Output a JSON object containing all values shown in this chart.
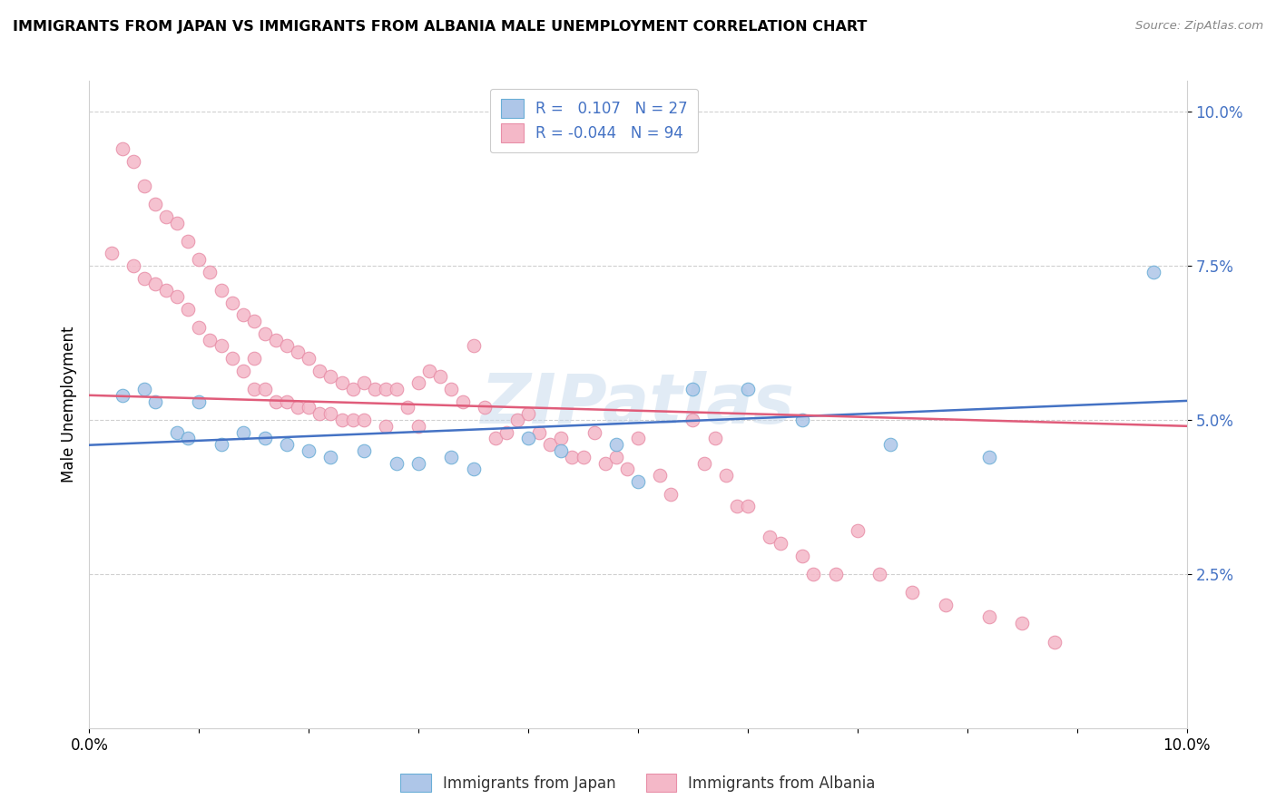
{
  "title": "IMMIGRANTS FROM JAPAN VS IMMIGRANTS FROM ALBANIA MALE UNEMPLOYMENT CORRELATION CHART",
  "source": "Source: ZipAtlas.com",
  "ylabel": "Male Unemployment",
  "watermark": "ZIPatlas",
  "legend_japan_R": "0.107",
  "legend_japan_N": "27",
  "legend_albania_R": "-0.044",
  "legend_albania_N": "94",
  "japan_color": "#aec6e8",
  "albania_color": "#f4b8c8",
  "japan_edge": "#6aaed6",
  "albania_edge": "#e88fa8",
  "japan_line_color": "#4472c4",
  "albania_line_color": "#e05c7a",
  "xlim": [
    0.0,
    0.1
  ],
  "ylim": [
    0.0,
    0.105
  ],
  "yticks": [
    0.025,
    0.05,
    0.075,
    0.1
  ],
  "ytick_labels": [
    "2.5%",
    "5.0%",
    "7.5%",
    "10.0%"
  ],
  "xticks": [
    0.0,
    0.01,
    0.02,
    0.03,
    0.04,
    0.05,
    0.06,
    0.07,
    0.08,
    0.09,
    0.1
  ],
  "xtick_labels": [
    "0.0%",
    "",
    "",
    "",
    "",
    "",
    "",
    "",
    "",
    "",
    "10.0%"
  ],
  "japan_line_x0": 0.0,
  "japan_line_y0": 0.044,
  "japan_line_x1": 0.1,
  "japan_line_y1": 0.05,
  "albania_line_x0": 0.0,
  "albania_line_y0": 0.054,
  "albania_line_x1": 0.1,
  "albania_line_y1": 0.049,
  "japan_scatter_x": [
    0.003,
    0.005,
    0.006,
    0.008,
    0.009,
    0.01,
    0.012,
    0.014,
    0.016,
    0.018,
    0.02,
    0.022,
    0.025,
    0.028,
    0.03,
    0.033,
    0.035,
    0.04,
    0.043,
    0.048,
    0.05,
    0.055,
    0.06,
    0.065,
    0.073,
    0.082,
    0.097
  ],
  "japan_scatter_y": [
    0.054,
    0.055,
    0.053,
    0.048,
    0.047,
    0.053,
    0.046,
    0.048,
    0.047,
    0.046,
    0.045,
    0.044,
    0.045,
    0.043,
    0.043,
    0.044,
    0.042,
    0.047,
    0.045,
    0.046,
    0.04,
    0.055,
    0.055,
    0.05,
    0.046,
    0.044,
    0.074
  ],
  "albania_scatter_x": [
    0.002,
    0.003,
    0.004,
    0.004,
    0.005,
    0.005,
    0.006,
    0.006,
    0.007,
    0.007,
    0.008,
    0.008,
    0.009,
    0.009,
    0.01,
    0.01,
    0.011,
    0.011,
    0.012,
    0.012,
    0.013,
    0.013,
    0.014,
    0.014,
    0.015,
    0.015,
    0.015,
    0.016,
    0.016,
    0.017,
    0.017,
    0.018,
    0.018,
    0.019,
    0.019,
    0.02,
    0.02,
    0.021,
    0.021,
    0.022,
    0.022,
    0.023,
    0.023,
    0.024,
    0.024,
    0.025,
    0.025,
    0.026,
    0.027,
    0.027,
    0.028,
    0.029,
    0.03,
    0.03,
    0.031,
    0.032,
    0.033,
    0.034,
    0.035,
    0.036,
    0.037,
    0.038,
    0.039,
    0.04,
    0.041,
    0.042,
    0.043,
    0.044,
    0.045,
    0.046,
    0.047,
    0.048,
    0.049,
    0.05,
    0.052,
    0.053,
    0.055,
    0.056,
    0.057,
    0.058,
    0.059,
    0.06,
    0.062,
    0.063,
    0.065,
    0.066,
    0.068,
    0.07,
    0.072,
    0.075,
    0.078,
    0.082,
    0.085,
    0.088
  ],
  "albania_scatter_y": [
    0.077,
    0.094,
    0.092,
    0.075,
    0.088,
    0.073,
    0.085,
    0.072,
    0.083,
    0.071,
    0.082,
    0.07,
    0.079,
    0.068,
    0.076,
    0.065,
    0.074,
    0.063,
    0.071,
    0.062,
    0.069,
    0.06,
    0.067,
    0.058,
    0.066,
    0.06,
    0.055,
    0.064,
    0.055,
    0.063,
    0.053,
    0.062,
    0.053,
    0.061,
    0.052,
    0.06,
    0.052,
    0.058,
    0.051,
    0.057,
    0.051,
    0.056,
    0.05,
    0.055,
    0.05,
    0.056,
    0.05,
    0.055,
    0.055,
    0.049,
    0.055,
    0.052,
    0.056,
    0.049,
    0.058,
    0.057,
    0.055,
    0.053,
    0.062,
    0.052,
    0.047,
    0.048,
    0.05,
    0.051,
    0.048,
    0.046,
    0.047,
    0.044,
    0.044,
    0.048,
    0.043,
    0.044,
    0.042,
    0.047,
    0.041,
    0.038,
    0.05,
    0.043,
    0.047,
    0.041,
    0.036,
    0.036,
    0.031,
    0.03,
    0.028,
    0.025,
    0.025,
    0.032,
    0.025,
    0.022,
    0.02,
    0.018,
    0.017,
    0.014
  ]
}
